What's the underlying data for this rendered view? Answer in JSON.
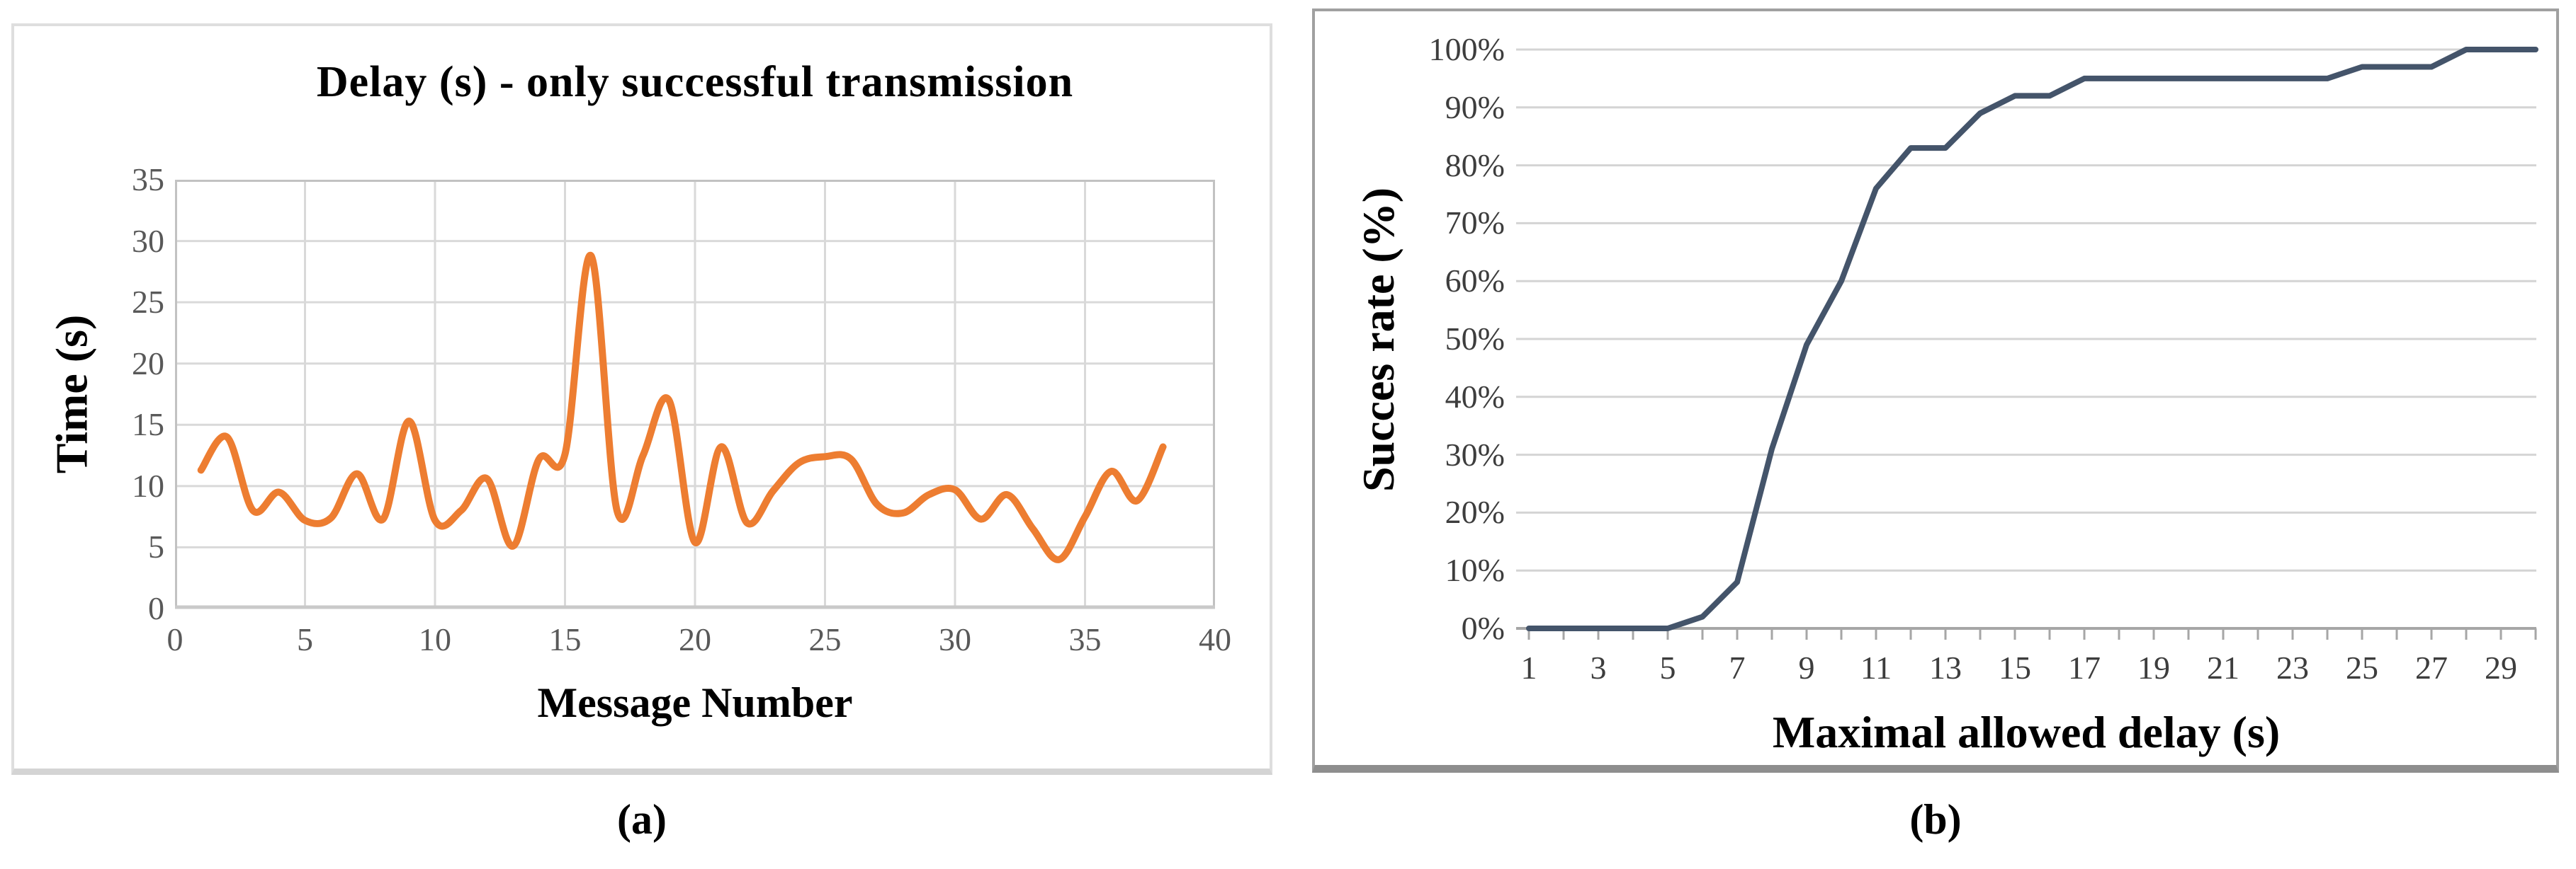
{
  "figure": {
    "caption_a": "(a)",
    "caption_b": "(b)",
    "background": "#ffffff"
  },
  "chart_data": [
    {
      "id": "delay-per-message",
      "type": "line",
      "title": "Delay (s) - only successful transmission",
      "xlabel": "Message Number",
      "ylabel": "Time (s)",
      "xlim": [
        0,
        40
      ],
      "ylim": [
        0,
        35
      ],
      "xticks": [
        0,
        5,
        10,
        15,
        20,
        25,
        30,
        35,
        40
      ],
      "yticks": [
        0,
        5,
        10,
        15,
        20,
        25,
        30,
        35
      ],
      "grid": "full",
      "legend": "none",
      "smooth": true,
      "line_color": "#ED7D31",
      "gridline_color": "#D9D9D9",
      "border_color": "#C2C2C2",
      "tick_text_color": "#595959",
      "x": [
        1,
        2,
        3,
        4,
        5,
        6,
        7,
        8,
        9,
        10,
        11,
        12,
        13,
        14,
        15,
        16,
        17,
        18,
        19,
        20,
        21,
        22,
        23,
        24,
        25,
        26,
        27,
        28,
        29,
        30,
        31,
        32,
        33,
        34,
        35,
        36,
        37,
        38
      ],
      "y": [
        11.3,
        14,
        8,
        9.5,
        7.2,
        7.4,
        11,
        7.3,
        15.3,
        7.2,
        8,
        10.6,
        5.1,
        12.2,
        12.6,
        28.8,
        8,
        12.5,
        17,
        5.4,
        13.2,
        7,
        9.6,
        11.9,
        12.4,
        12.2,
        8.5,
        7.8,
        9.3,
        9.7,
        7.3,
        9.3,
        6.5,
        4,
        7.5,
        11.2,
        8.8,
        13.2
      ]
    },
    {
      "id": "success-rate-vs-max-delay",
      "type": "line",
      "title": "",
      "xlabel": "Maximal allowed delay (s)",
      "ylabel": "Succes rate (%)",
      "xlim": [
        1,
        30
      ],
      "ylim": [
        0,
        100
      ],
      "xticks": [
        1,
        3,
        5,
        7,
        9,
        11,
        13,
        15,
        17,
        19,
        21,
        23,
        25,
        27,
        29
      ],
      "ytick_labels": [
        "0%",
        "10%",
        "20%",
        "30%",
        "40%",
        "50%",
        "60%",
        "70%",
        "80%",
        "90%",
        "100%"
      ],
      "yticks": [
        0,
        10,
        20,
        30,
        40,
        50,
        60,
        70,
        80,
        90,
        100
      ],
      "grid": "horizontal",
      "legend": "none",
      "smooth": false,
      "line_color": "#44546A",
      "gridline_color": "#D4D4D4",
      "axis_color": "#A6A6A6",
      "tick_text_color": "#3D3D3D",
      "x": [
        1,
        2,
        3,
        4,
        5,
        6,
        7,
        8,
        9,
        10,
        11,
        12,
        13,
        14,
        15,
        16,
        17,
        18,
        19,
        20,
        21,
        22,
        23,
        24,
        25,
        26,
        27,
        28,
        29,
        30
      ],
      "y": [
        0,
        0,
        0,
        0,
        0,
        2,
        8,
        31,
        49,
        60,
        76,
        83,
        83,
        89,
        92,
        92,
        95,
        95,
        95,
        95,
        95,
        95,
        95,
        95,
        97,
        97,
        97,
        100,
        100,
        100
      ]
    }
  ]
}
